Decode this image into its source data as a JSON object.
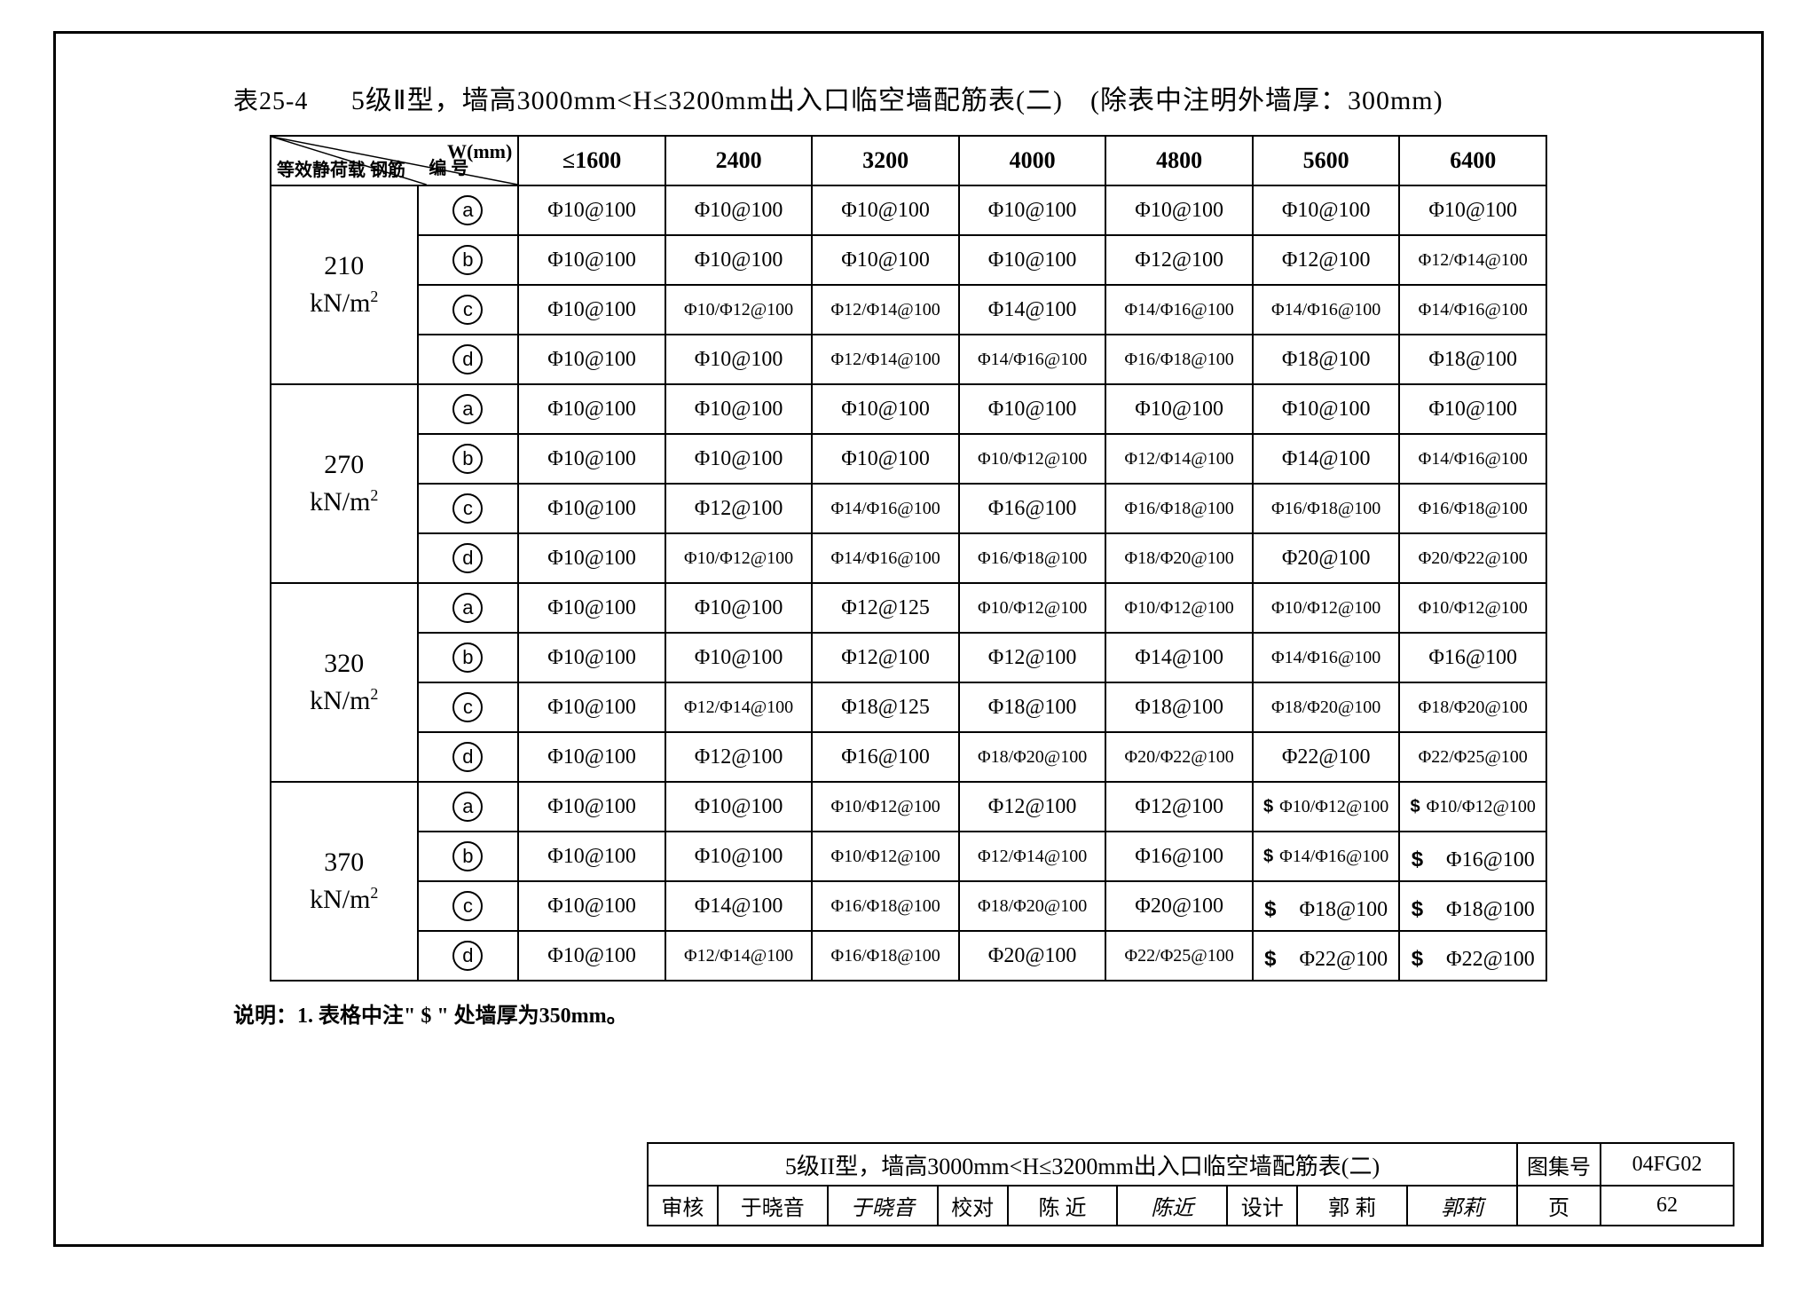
{
  "table_number": "表25-4",
  "title": "5级Ⅱ型，墙高3000mm<H≤3200mm出入口临空墙配筋表(二)　(除表中注明外墙厚：300mm)",
  "diag": {
    "top_right": "W(mm)",
    "bottom_left": "等效静荷载 钢筋",
    "bottom_right": "编 号"
  },
  "col_headers": [
    "≤1600",
    "2400",
    "3200",
    "4000",
    "4800",
    "5600",
    "6400"
  ],
  "loads": [
    "210",
    "270",
    "320",
    "370"
  ],
  "load_unit": "kN/m²",
  "symbols": [
    "a",
    "b",
    "c",
    "d"
  ],
  "rows": [
    [
      [
        "Φ10@100",
        "Φ10@100",
        "Φ10@100",
        "Φ10@100",
        "Φ10@100",
        "Φ10@100",
        "Φ10@100"
      ],
      [
        "Φ10@100",
        "Φ10@100",
        "Φ10@100",
        "Φ10@100",
        "Φ12@100",
        "Φ12@100",
        "Φ12/Φ14@100"
      ],
      [
        "Φ10@100",
        "Φ10/Φ12@100",
        "Φ12/Φ14@100",
        "Φ14@100",
        "Φ14/Φ16@100",
        "Φ14/Φ16@100",
        "Φ14/Φ16@100"
      ],
      [
        "Φ10@100",
        "Φ10@100",
        "Φ12/Φ14@100",
        "Φ14/Φ16@100",
        "Φ16/Φ18@100",
        "Φ18@100",
        "Φ18@100"
      ]
    ],
    [
      [
        "Φ10@100",
        "Φ10@100",
        "Φ10@100",
        "Φ10@100",
        "Φ10@100",
        "Φ10@100",
        "Φ10@100"
      ],
      [
        "Φ10@100",
        "Φ10@100",
        "Φ10@100",
        "Φ10/Φ12@100",
        "Φ12/Φ14@100",
        "Φ14@100",
        "Φ14/Φ16@100"
      ],
      [
        "Φ10@100",
        "Φ12@100",
        "Φ14/Φ16@100",
        "Φ16@100",
        "Φ16/Φ18@100",
        "Φ16/Φ18@100",
        "Φ16/Φ18@100"
      ],
      [
        "Φ10@100",
        "Φ10/Φ12@100",
        "Φ14/Φ16@100",
        "Φ16/Φ18@100",
        "Φ18/Φ20@100",
        "Φ20@100",
        "Φ20/Φ22@100"
      ]
    ],
    [
      [
        "Φ10@100",
        "Φ10@100",
        "Φ12@125",
        "Φ10/Φ12@100",
        "Φ10/Φ12@100",
        "Φ10/Φ12@100",
        "Φ10/Φ12@100"
      ],
      [
        "Φ10@100",
        "Φ10@100",
        "Φ12@100",
        "Φ12@100",
        "Φ14@100",
        "Φ14/Φ16@100",
        "Φ16@100"
      ],
      [
        "Φ10@100",
        "Φ12/Φ14@100",
        "Φ18@125",
        "Φ18@100",
        "Φ18@100",
        "Φ18/Φ20@100",
        "Φ18/Φ20@100"
      ],
      [
        "Φ10@100",
        "Φ12@100",
        "Φ16@100",
        "Φ18/Φ20@100",
        "Φ20/Φ22@100",
        "Φ22@100",
        "Φ22/Φ25@100"
      ]
    ],
    [
      [
        "Φ10@100",
        "Φ10@100",
        "Φ10/Φ12@100",
        "Φ12@100",
        "Φ12@100",
        "$ Φ10/Φ12@100",
        "$ Φ10/Φ12@100"
      ],
      [
        "Φ10@100",
        "Φ10@100",
        "Φ10/Φ12@100",
        "Φ12/Φ14@100",
        "Φ16@100",
        "$ Φ14/Φ16@100",
        "$　Φ16@100"
      ],
      [
        "Φ10@100",
        "Φ14@100",
        "Φ16/Φ18@100",
        "Φ18/Φ20@100",
        "Φ20@100",
        "$　Φ18@100",
        "$　Φ18@100"
      ],
      [
        "Φ10@100",
        "Φ12/Φ14@100",
        "Φ16/Φ18@100",
        "Φ20@100",
        "Φ22/Φ25@100",
        "$　Φ22@100",
        "$　Φ22@100"
      ]
    ]
  ],
  "note": "说明：1. 表格中注\" $ \" 处墙厚为350mm。",
  "titleblock": {
    "main": "5级II型，墙高3000mm<H≤3200mm出入口临空墙配筋表(二)",
    "atlas_label": "图集号",
    "atlas_value": "04FG02",
    "review_label": "审核",
    "review_name": "于晓音",
    "review_sig": "于晓音",
    "check_label": "校对",
    "check_name": "陈 近",
    "check_sig": "陈近",
    "design_label": "设计",
    "design_name": "郭 莉",
    "design_sig": "郭莉",
    "page_label": "页",
    "page_value": "62"
  }
}
